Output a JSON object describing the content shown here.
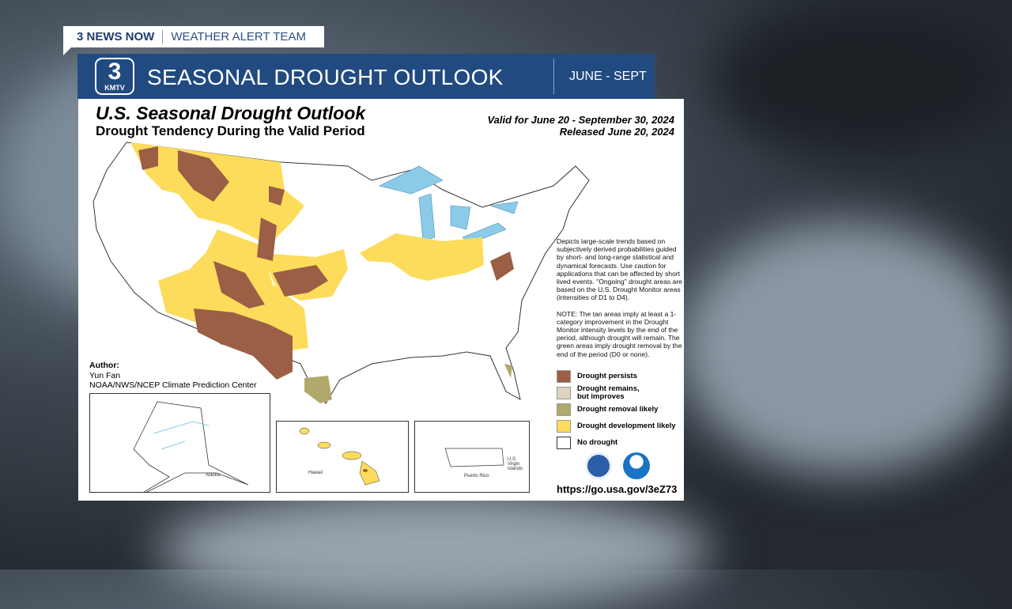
{
  "header_tag": {
    "brand": "3 NEWS NOW",
    "team": "WEATHER ALERT TEAM"
  },
  "title_bar": {
    "logo_number": "3",
    "logo_text": "KMTV",
    "title": "SEASONAL DROUGHT OUTLOOK",
    "range": "JUNE - SEPT",
    "color": "#214a80"
  },
  "map": {
    "title": "U.S. Seasonal Drought Outlook",
    "subtitle": "Drought Tendency During the Valid Period",
    "valid": "Valid for June 20 - September 30, 2024",
    "released": "Released June 20, 2024",
    "description": "Depicts large-scale trends based on subjectively derived probabilities guided by short- and long-range statistical and dynamical forecasts. Use caution for applications that can be affected by short lived events. \"Ongoing\" drought areas are based on the U.S. Drought Monitor areas (intensities of D1 to D4).",
    "note": "NOTE: The tan areas imply at least a 1-category improvement in the Drought Monitor intensity levels by the end of the period, although drought will remain. The green areas imply drought removal by the end of the period (D0 or none).",
    "legend": [
      {
        "label": "Drought persists",
        "color": "#9b5f45"
      },
      {
        "label": "Drought remains, but improves",
        "color": "#ddd3bf"
      },
      {
        "label": "Drought removal likely",
        "color": "#b1a96b"
      },
      {
        "label": "Drought development likely",
        "color": "#fddc5c"
      },
      {
        "label": "No drought",
        "color": "#ffffff"
      }
    ],
    "author_label": "Author:",
    "author": "Yun Fan",
    "org": "NOAA/NWS/NCEP Climate Prediction Center",
    "insets": {
      "alaska": "Alaska",
      "hawaii": "Hawaii",
      "puerto_rico": "Puerto Rico",
      "usvi": "U.S. Virgin Islands"
    },
    "url": "https://go.usa.gov/3eZ73",
    "logos": [
      "doc-seal",
      "noaa-logo"
    ]
  }
}
